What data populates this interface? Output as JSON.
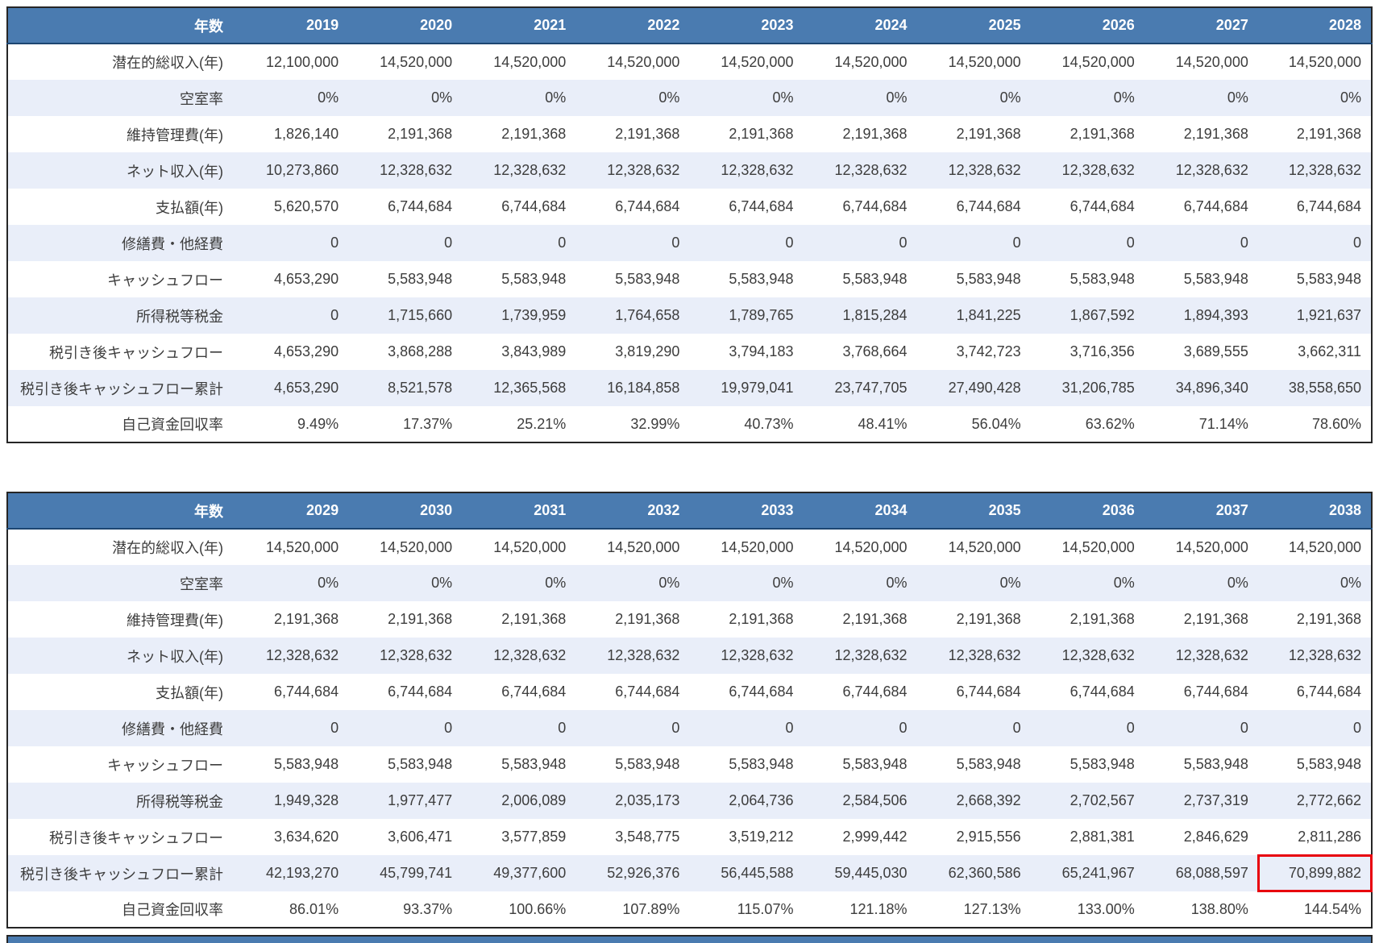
{
  "colors": {
    "header_bg": "#4a7bb0",
    "stripe_bg": "#e9eef9",
    "table_border": "#262626",
    "text": "#3d3d3d",
    "highlight": "#e8000d"
  },
  "chart_data": [
    {
      "type": "table",
      "corner_label": "年数",
      "columns": [
        "2019",
        "2020",
        "2021",
        "2022",
        "2023",
        "2024",
        "2025",
        "2026",
        "2027",
        "2028"
      ],
      "rows": [
        {
          "label": "潜在的総収入(年)",
          "values": [
            "12,100,000",
            "14,520,000",
            "14,520,000",
            "14,520,000",
            "14,520,000",
            "14,520,000",
            "14,520,000",
            "14,520,000",
            "14,520,000",
            "14,520,000"
          ]
        },
        {
          "label": "空室率",
          "values": [
            "0%",
            "0%",
            "0%",
            "0%",
            "0%",
            "0%",
            "0%",
            "0%",
            "0%",
            "0%"
          ]
        },
        {
          "label": "維持管理費(年)",
          "values": [
            "1,826,140",
            "2,191,368",
            "2,191,368",
            "2,191,368",
            "2,191,368",
            "2,191,368",
            "2,191,368",
            "2,191,368",
            "2,191,368",
            "2,191,368"
          ]
        },
        {
          "label": "ネット収入(年)",
          "values": [
            "10,273,860",
            "12,328,632",
            "12,328,632",
            "12,328,632",
            "12,328,632",
            "12,328,632",
            "12,328,632",
            "12,328,632",
            "12,328,632",
            "12,328,632"
          ]
        },
        {
          "label": "支払額(年)",
          "values": [
            "5,620,570",
            "6,744,684",
            "6,744,684",
            "6,744,684",
            "6,744,684",
            "6,744,684",
            "6,744,684",
            "6,744,684",
            "6,744,684",
            "6,744,684"
          ]
        },
        {
          "label": "修繕費・他経費",
          "values": [
            "0",
            "0",
            "0",
            "0",
            "0",
            "0",
            "0",
            "0",
            "0",
            "0"
          ]
        },
        {
          "label": "キャッシュフロー",
          "values": [
            "4,653,290",
            "5,583,948",
            "5,583,948",
            "5,583,948",
            "5,583,948",
            "5,583,948",
            "5,583,948",
            "5,583,948",
            "5,583,948",
            "5,583,948"
          ]
        },
        {
          "label": "所得税等税金",
          "values": [
            "0",
            "1,715,660",
            "1,739,959",
            "1,764,658",
            "1,789,765",
            "1,815,284",
            "1,841,225",
            "1,867,592",
            "1,894,393",
            "1,921,637"
          ]
        },
        {
          "label": "税引き後キャッシュフロー",
          "values": [
            "4,653,290",
            "3,868,288",
            "3,843,989",
            "3,819,290",
            "3,794,183",
            "3,768,664",
            "3,742,723",
            "3,716,356",
            "3,689,555",
            "3,662,311"
          ]
        },
        {
          "label": "税引き後キャッシュフロー累計",
          "values": [
            "4,653,290",
            "8,521,578",
            "12,365,568",
            "16,184,858",
            "19,979,041",
            "23,747,705",
            "27,490,428",
            "31,206,785",
            "34,896,340",
            "38,558,650"
          ]
        },
        {
          "label": "自己資金回収率",
          "values": [
            "9.49%",
            "17.37%",
            "25.21%",
            "32.99%",
            "40.73%",
            "48.41%",
            "56.04%",
            "63.62%",
            "71.14%",
            "78.60%"
          ]
        }
      ],
      "highlight_cell": null
    },
    {
      "type": "table",
      "corner_label": "年数",
      "columns": [
        "2029",
        "2030",
        "2031",
        "2032",
        "2033",
        "2034",
        "2035",
        "2036",
        "2037",
        "2038"
      ],
      "rows": [
        {
          "label": "潜在的総収入(年)",
          "values": [
            "14,520,000",
            "14,520,000",
            "14,520,000",
            "14,520,000",
            "14,520,000",
            "14,520,000",
            "14,520,000",
            "14,520,000",
            "14,520,000",
            "14,520,000"
          ]
        },
        {
          "label": "空室率",
          "values": [
            "0%",
            "0%",
            "0%",
            "0%",
            "0%",
            "0%",
            "0%",
            "0%",
            "0%",
            "0%"
          ]
        },
        {
          "label": "維持管理費(年)",
          "values": [
            "2,191,368",
            "2,191,368",
            "2,191,368",
            "2,191,368",
            "2,191,368",
            "2,191,368",
            "2,191,368",
            "2,191,368",
            "2,191,368",
            "2,191,368"
          ]
        },
        {
          "label": "ネット収入(年)",
          "values": [
            "12,328,632",
            "12,328,632",
            "12,328,632",
            "12,328,632",
            "12,328,632",
            "12,328,632",
            "12,328,632",
            "12,328,632",
            "12,328,632",
            "12,328,632"
          ]
        },
        {
          "label": "支払額(年)",
          "values": [
            "6,744,684",
            "6,744,684",
            "6,744,684",
            "6,744,684",
            "6,744,684",
            "6,744,684",
            "6,744,684",
            "6,744,684",
            "6,744,684",
            "6,744,684"
          ]
        },
        {
          "label": "修繕費・他経費",
          "values": [
            "0",
            "0",
            "0",
            "0",
            "0",
            "0",
            "0",
            "0",
            "0",
            "0"
          ]
        },
        {
          "label": "キャッシュフロー",
          "values": [
            "5,583,948",
            "5,583,948",
            "5,583,948",
            "5,583,948",
            "5,583,948",
            "5,583,948",
            "5,583,948",
            "5,583,948",
            "5,583,948",
            "5,583,948"
          ]
        },
        {
          "label": "所得税等税金",
          "values": [
            "1,949,328",
            "1,977,477",
            "2,006,089",
            "2,035,173",
            "2,064,736",
            "2,584,506",
            "2,668,392",
            "2,702,567",
            "2,737,319",
            "2,772,662"
          ]
        },
        {
          "label": "税引き後キャッシュフロー",
          "values": [
            "3,634,620",
            "3,606,471",
            "3,577,859",
            "3,548,775",
            "3,519,212",
            "2,999,442",
            "2,915,556",
            "2,881,381",
            "2,846,629",
            "2,811,286"
          ]
        },
        {
          "label": "税引き後キャッシュフロー累計",
          "values": [
            "42,193,270",
            "45,799,741",
            "49,377,600",
            "52,926,376",
            "56,445,588",
            "59,445,030",
            "62,360,586",
            "65,241,967",
            "68,088,597",
            "70,899,882"
          ]
        },
        {
          "label": "自己資金回収率",
          "values": [
            "86.01%",
            "93.37%",
            "100.66%",
            "107.89%",
            "115.07%",
            "121.18%",
            "127.13%",
            "133.00%",
            "138.80%",
            "144.54%"
          ]
        }
      ],
      "highlight_cell": {
        "row_label": "税引き後キャッシュフロー累計",
        "column": "2038"
      }
    }
  ]
}
